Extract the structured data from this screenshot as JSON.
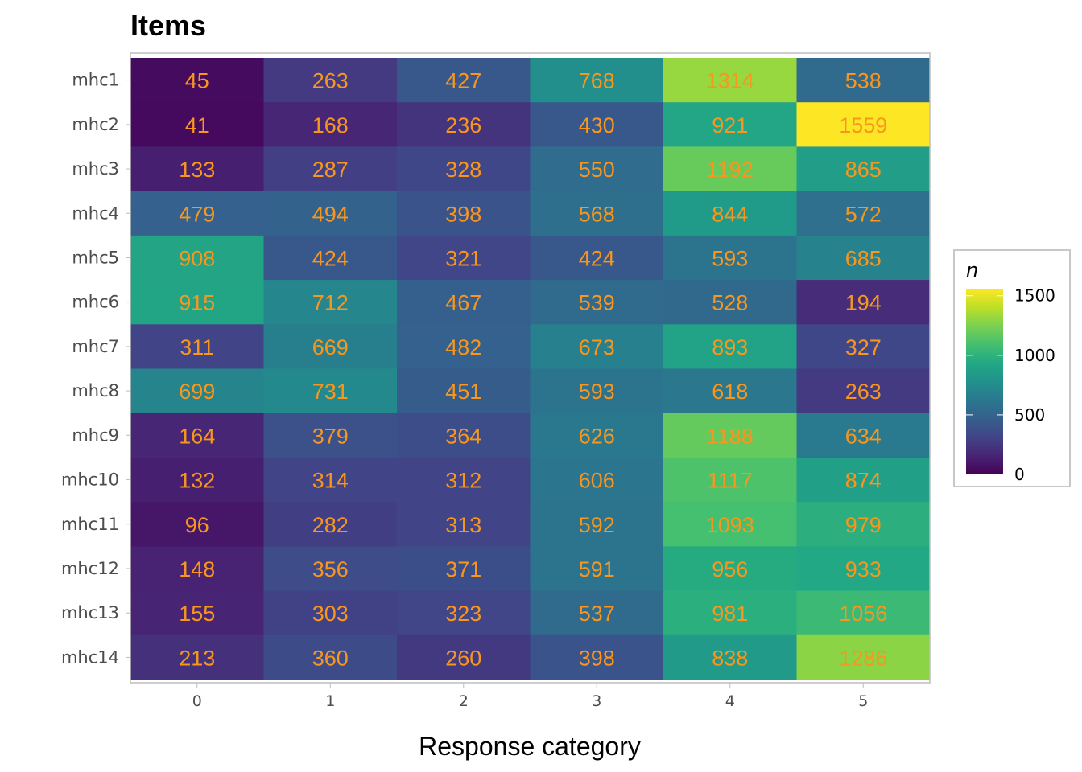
{
  "chart_data": {
    "type": "heatmap",
    "title": "Items",
    "xlabel": "Response category",
    "ylabel": "",
    "categories": [
      "0",
      "1",
      "2",
      "3",
      "4",
      "5"
    ],
    "rows": [
      "mhc1",
      "mhc2",
      "mhc3",
      "mhc4",
      "mhc5",
      "mhc6",
      "mhc7",
      "mhc8",
      "mhc9",
      "mhc10",
      "mhc11",
      "mhc12",
      "mhc13",
      "mhc14"
    ],
    "values": [
      [
        45,
        263,
        427,
        768,
        1314,
        538
      ],
      [
        41,
        168,
        236,
        430,
        921,
        1559
      ],
      [
        133,
        287,
        328,
        550,
        1192,
        865
      ],
      [
        479,
        494,
        398,
        568,
        844,
        572
      ],
      [
        908,
        424,
        321,
        424,
        593,
        685
      ],
      [
        915,
        712,
        467,
        539,
        528,
        194
      ],
      [
        311,
        669,
        482,
        673,
        893,
        327
      ],
      [
        699,
        731,
        451,
        593,
        618,
        263
      ],
      [
        164,
        379,
        364,
        626,
        1188,
        634
      ],
      [
        132,
        314,
        312,
        606,
        1117,
        874
      ],
      [
        96,
        282,
        313,
        592,
        1093,
        979
      ],
      [
        148,
        356,
        371,
        591,
        956,
        933
      ],
      [
        155,
        303,
        323,
        537,
        981,
        1056
      ],
      [
        213,
        360,
        260,
        398,
        838,
        1286
      ]
    ],
    "legend": {
      "title": "n",
      "ticks": [
        0,
        500,
        1000,
        1500
      ],
      "placement": "right",
      "palette": "viridis",
      "min": 0,
      "max": 1559
    },
    "label_color": "#f8961e",
    "grid": false
  }
}
